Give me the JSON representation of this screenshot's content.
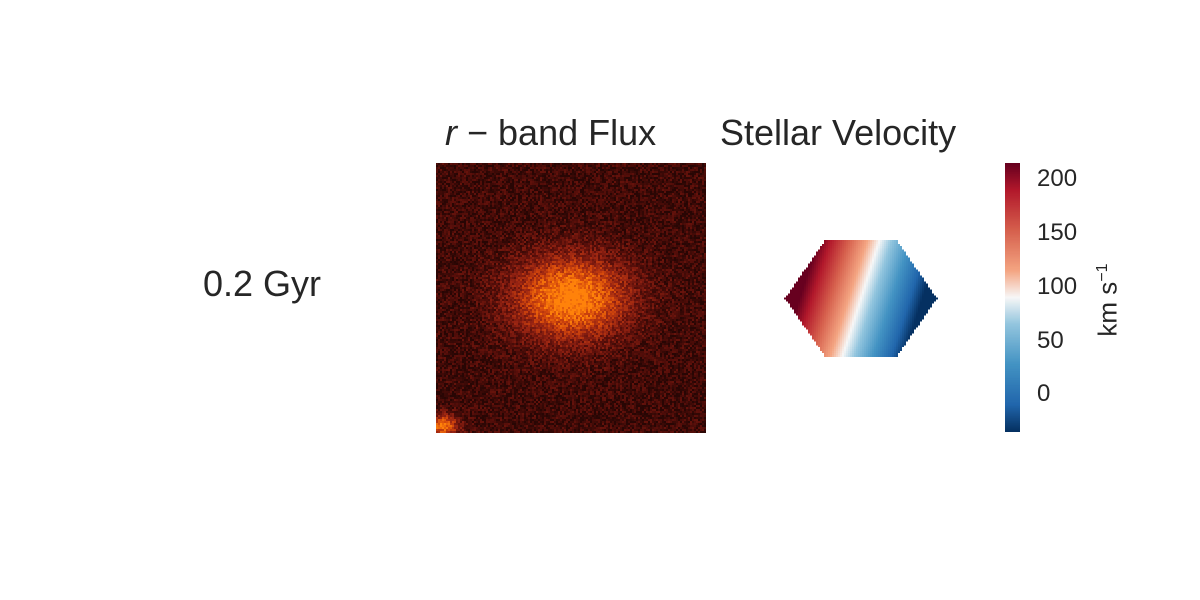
{
  "chart_data": {
    "type": "heatmap",
    "row_label": "0.2 Gyr",
    "panels": [
      {
        "title_symbol": "r",
        "title_rest": " − band Flux",
        "colormap": "dark-red to orange",
        "colors": {
          "background": "#3a0e0a",
          "mid": "#a8301a",
          "peak": "#f07e0a"
        }
      },
      {
        "title": "Stellar Velocity",
        "colormap": "RdBu",
        "colors": {
          "high": "#6b0a1e",
          "mid": "#f7f7f7",
          "low": "#0b3d72"
        }
      }
    ],
    "colorbar": {
      "range": [
        -35,
        215
      ],
      "ticks": [
        0,
        50,
        100,
        150,
        200
      ],
      "tick_labels": [
        "0",
        "50",
        "100",
        "150",
        "200"
      ],
      "unit_main": "km s",
      "unit_sup": "−1"
    }
  }
}
